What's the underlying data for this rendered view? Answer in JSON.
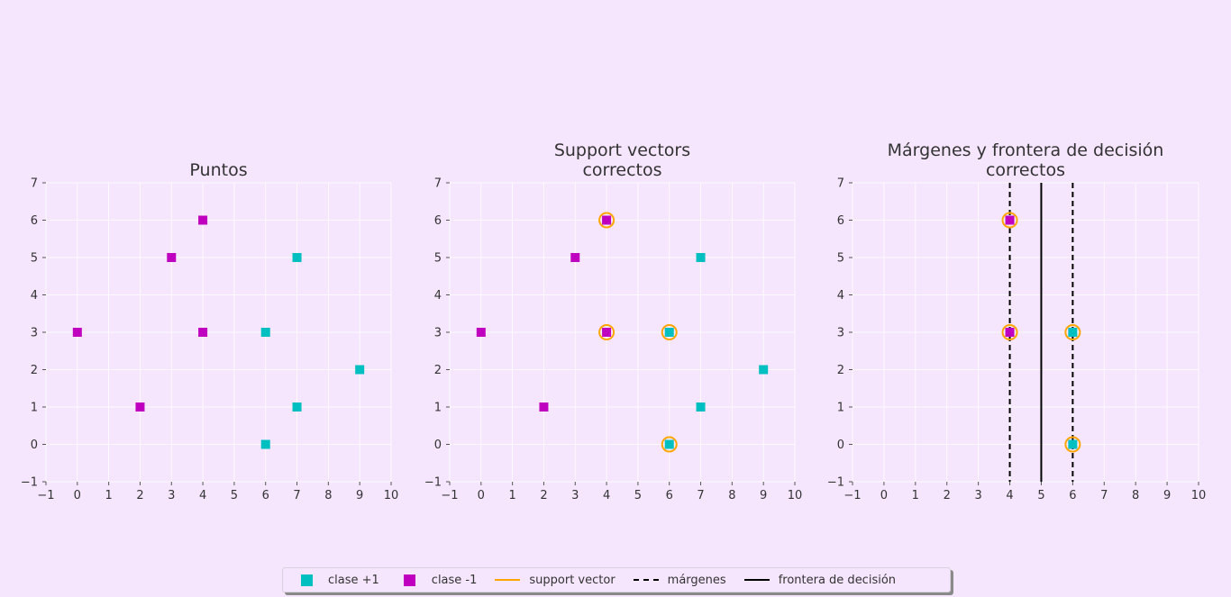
{
  "colors": {
    "background": "#f5e6fe",
    "class_pos": "#00bfc0",
    "class_neg": "#bf00bf",
    "support_vector": "#ffa500",
    "grid": "#ffffff",
    "line": "#000000",
    "text": "#333333"
  },
  "chart_data": [
    {
      "type": "scatter",
      "title": "Puntos",
      "xlim": [
        -1,
        10
      ],
      "ylim": [
        -1,
        7
      ],
      "xticks": [
        "−1",
        "0",
        "1",
        "2",
        "3",
        "4",
        "5",
        "6",
        "7",
        "8",
        "9",
        "10"
      ],
      "yticks": [
        "−1",
        "0",
        "1",
        "2",
        "3",
        "4",
        "5",
        "6",
        "7"
      ],
      "grid": true,
      "series": [
        {
          "name": "clase +1",
          "points": [
            [
              7,
              5
            ],
            [
              6,
              3
            ],
            [
              9,
              2
            ],
            [
              7,
              1
            ],
            [
              6,
              0
            ]
          ]
        },
        {
          "name": "clase -1",
          "points": [
            [
              4,
              6
            ],
            [
              3,
              5
            ],
            [
              0,
              3
            ],
            [
              4,
              3
            ],
            [
              2,
              1
            ]
          ]
        }
      ],
      "support_vectors": [],
      "vlines": []
    },
    {
      "type": "scatter",
      "title": "Support vectors\ncorrectos",
      "xlim": [
        -1,
        10
      ],
      "ylim": [
        -1,
        7
      ],
      "xticks": [
        "−1",
        "0",
        "1",
        "2",
        "3",
        "4",
        "5",
        "6",
        "7",
        "8",
        "9",
        "10"
      ],
      "yticks": [
        "−1",
        "0",
        "1",
        "2",
        "3",
        "4",
        "5",
        "6",
        "7"
      ],
      "grid": true,
      "series": [
        {
          "name": "clase +1",
          "points": [
            [
              7,
              5
            ],
            [
              6,
              3
            ],
            [
              9,
              2
            ],
            [
              7,
              1
            ],
            [
              6,
              0
            ]
          ]
        },
        {
          "name": "clase -1",
          "points": [
            [
              4,
              6
            ],
            [
              3,
              5
            ],
            [
              0,
              3
            ],
            [
              4,
              3
            ],
            [
              2,
              1
            ]
          ]
        }
      ],
      "support_vectors": [
        [
          4,
          6
        ],
        [
          4,
          3
        ],
        [
          6,
          3
        ],
        [
          6,
          0
        ]
      ],
      "vlines": []
    },
    {
      "type": "scatter",
      "title": "Márgenes y frontera de decisión\ncorrectos",
      "xlim": [
        -1,
        10
      ],
      "ylim": [
        -1,
        7
      ],
      "xticks": [
        "−1",
        "0",
        "1",
        "2",
        "3",
        "4",
        "5",
        "6",
        "7",
        "8",
        "9",
        "10"
      ],
      "yticks": [
        "−1",
        "0",
        "1",
        "2",
        "3",
        "4",
        "5",
        "6",
        "7"
      ],
      "grid": true,
      "series": [
        {
          "name": "clase +1",
          "points": [
            [
              6,
              3
            ],
            [
              6,
              0
            ]
          ]
        },
        {
          "name": "clase -1",
          "points": [
            [
              4,
              6
            ],
            [
              4,
              3
            ]
          ]
        }
      ],
      "support_vectors": [
        [
          4,
          6
        ],
        [
          4,
          3
        ],
        [
          6,
          3
        ],
        [
          6,
          0
        ]
      ],
      "vlines": [
        {
          "x": 4,
          "style": "dashed",
          "role": "márgenes"
        },
        {
          "x": 6,
          "style": "dashed",
          "role": "márgenes"
        },
        {
          "x": 5,
          "style": "solid",
          "role": "frontera de decisión"
        }
      ]
    }
  ],
  "legend": {
    "placement": "bottom-center",
    "items": [
      {
        "label": "clase +1",
        "kind": "square",
        "color": "#00bfc0"
      },
      {
        "label": "clase -1",
        "kind": "square",
        "color": "#bf00bf"
      },
      {
        "label": "support vector",
        "kind": "line",
        "color": "#ffa500"
      },
      {
        "label": "márgenes",
        "kind": "dashed",
        "color": "#000000"
      },
      {
        "label": "frontera de decisión",
        "kind": "solid",
        "color": "#000000"
      }
    ]
  }
}
